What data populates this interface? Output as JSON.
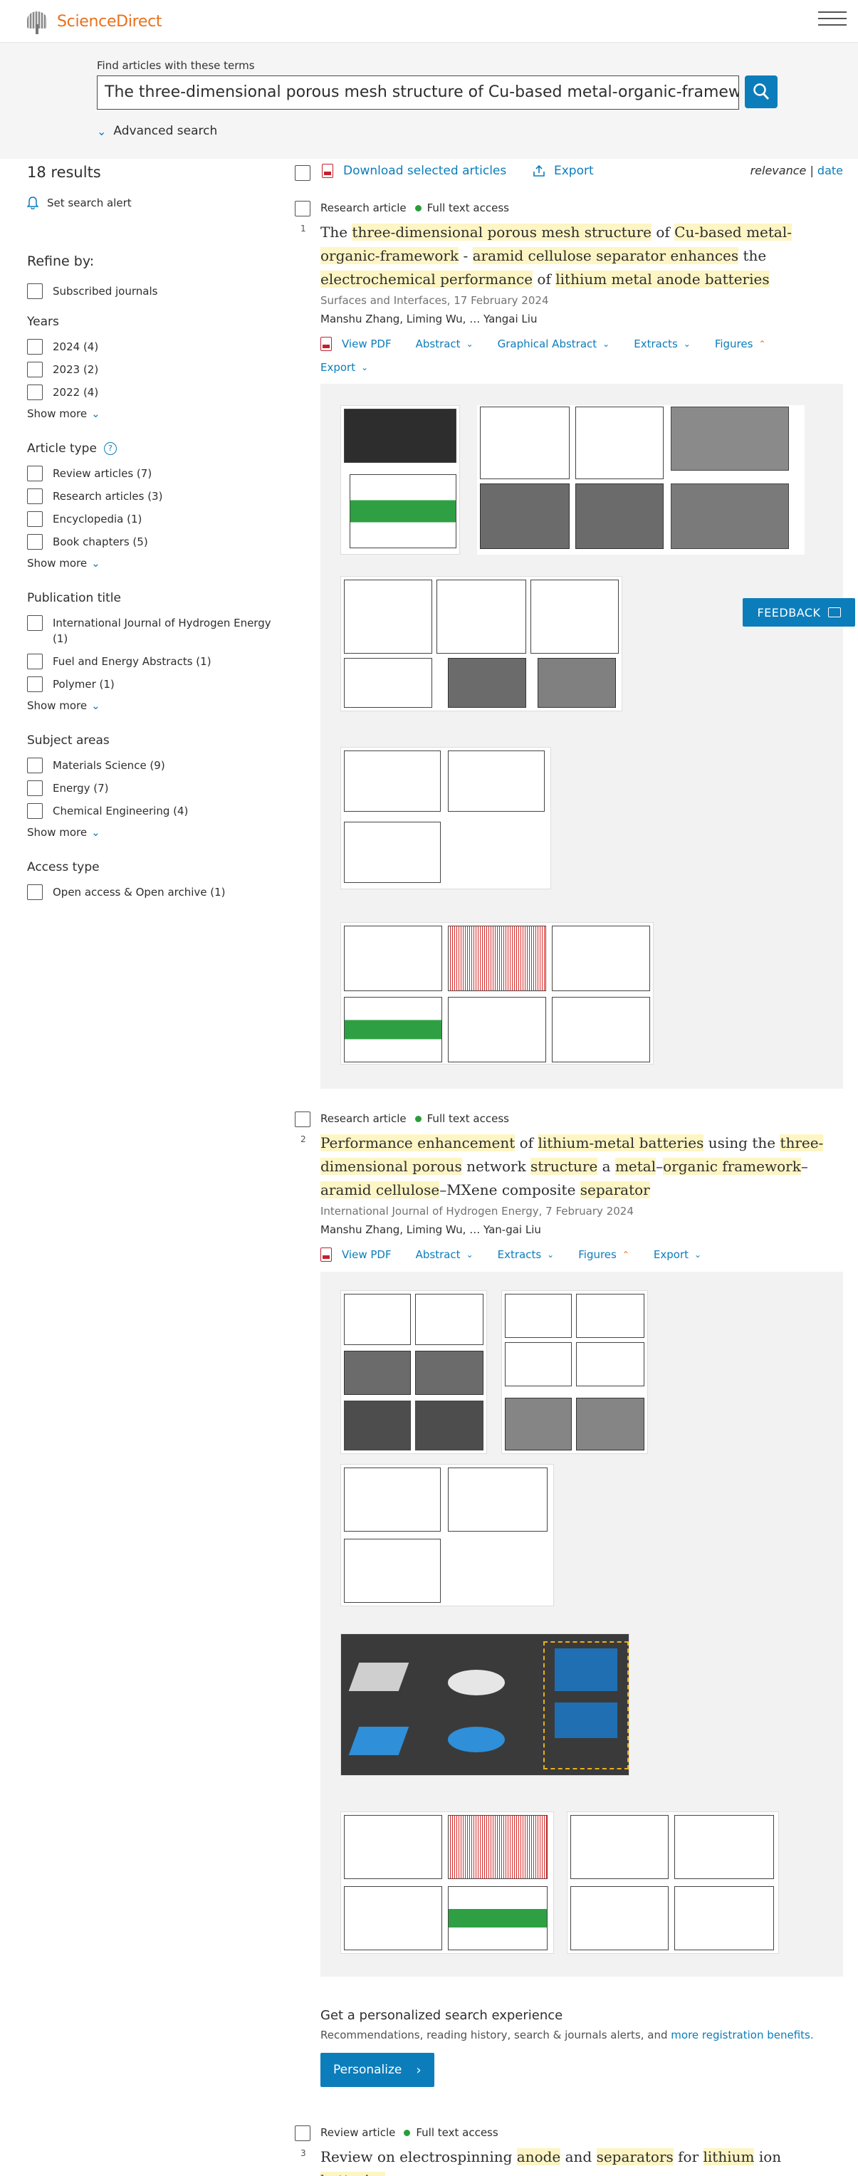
{
  "header": {
    "logo_text": "ScienceDirect",
    "menu_icon": "hamburger-menu-icon"
  },
  "search": {
    "label": "Find articles with these terms",
    "value": "The three-dimensional porous mesh structure of Cu-based  metal-organic-framewo",
    "advanced": "Advanced search"
  },
  "sidebar": {
    "results_count": "18 results",
    "set_alert": "Set search alert",
    "refine": "Refine by:",
    "subscribed": "Subscribed journals",
    "years_title": "Years",
    "years": [
      "2024 (4)",
      "2023 (2)",
      "2022 (4)"
    ],
    "show_more": "Show more",
    "article_type_title": "Article type",
    "article_types": [
      "Review articles (7)",
      "Research articles (3)",
      "Encyclopedia (1)",
      "Book chapters (5)"
    ],
    "publication_title": "Publication title",
    "publications": [
      "International Journal of Hydrogen Energy (1)",
      "Fuel and Energy Abstracts (1)",
      "Polymer (1)"
    ],
    "subject_areas_title": "Subject areas",
    "subject_areas": [
      "Materials Science (9)",
      "Energy (7)",
      "Chemical Engineering (4)"
    ],
    "access_type_title": "Access type",
    "access_types": [
      "Open access & Open archive (1)"
    ]
  },
  "toolbar": {
    "download": "Download selected articles",
    "export": "Export",
    "sort_relevance": "relevance",
    "sort_sep": " | ",
    "sort_date": "date"
  },
  "items": [
    {
      "type": "Research article",
      "access": "Full text access",
      "number": "1",
      "source": "Surfaces and Interfaces, 17 February 2024",
      "authors": "Manshu Zhang, Liming Wu, … Yangai Liu",
      "actions": [
        "View PDF",
        "Abstract",
        "Graphical Abstract",
        "Extracts",
        "Figures",
        "Export"
      ]
    },
    {
      "type": "Research article",
      "access": "Full text access",
      "number": "2",
      "source": "International Journal of Hydrogen Energy, 7 February 2024",
      "authors": "Manshu Zhang, Liming Wu, … Yan-gai Liu",
      "actions": [
        "View PDF",
        "Abstract",
        "Extracts",
        "Figures",
        "Export"
      ]
    },
    {
      "type": "Review article",
      "access": "Full text access",
      "number": "3"
    }
  ],
  "personalize": {
    "title": "Get a personalized search experience",
    "text": "Recommendations, reading history, search & journals alerts, and ",
    "link": "more registration benefits.",
    "button": "Personalize"
  },
  "feedback": "FEEDBACK",
  "colors": {
    "accent": "#0c7dbb",
    "brand": "#e9711c",
    "highlight": "#fdf5c4",
    "access_green": "#2a9d3c"
  }
}
